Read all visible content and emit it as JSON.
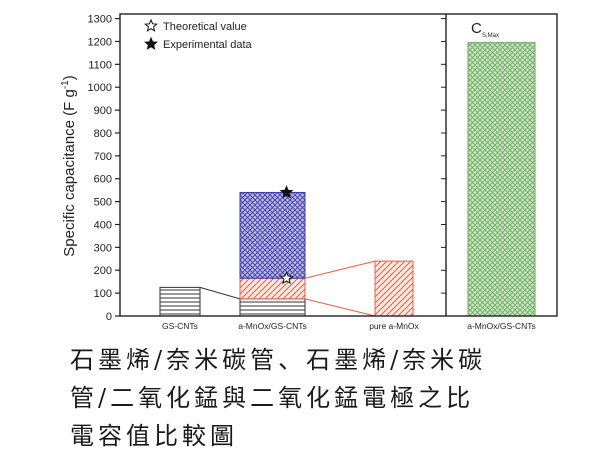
{
  "chart_data": {
    "type": "bar",
    "title": "",
    "xlabel": "",
    "ylabel": "Specific capacitance (F g",
    "ylabel_superscript": "-1",
    "ylabel_suffix": ")",
    "ylim": [
      0,
      1320
    ],
    "yticks": [
      0,
      100,
      200,
      300,
      400,
      500,
      600,
      700,
      800,
      900,
      1000,
      1100,
      1200,
      1300
    ],
    "grid": false,
    "legend_position": "top-left",
    "legend": [
      "Theoretical value",
      "Experimental data"
    ],
    "categories": [
      "GS-CNTs",
      "a-MnOx/GS-CNTs",
      "pure a-MnOx",
      "a-MnOx/GS-CNTs"
    ],
    "bars": [
      {
        "category_index": 0,
        "segments": [
          {
            "from": 0,
            "to": 125,
            "fill": "horizontal-lines",
            "color": "#333333"
          }
        ]
      },
      {
        "category_index": 1,
        "segments": [
          {
            "from": 0,
            "to": 75,
            "fill": "horizontal-lines",
            "color": "#333333"
          },
          {
            "from": 75,
            "to": 165,
            "fill": "diagonal-hatch",
            "color": "#e0604a"
          },
          {
            "from": 165,
            "to": 540,
            "fill": "cross-hatch",
            "color": "#3c3aa8"
          }
        ]
      },
      {
        "category_index": 2,
        "segments": [
          {
            "from": 0,
            "to": 240,
            "fill": "diagonal-hatch",
            "color": "#e0604a"
          }
        ]
      },
      {
        "category_index": 3,
        "segments": [
          {
            "from": 0,
            "to": 1195,
            "fill": "cross-hatch",
            "color": "#6aae5e"
          }
        ]
      }
    ],
    "markers": [
      {
        "category_index": 1,
        "value": 165,
        "style": "open-star",
        "legend_index": 0
      },
      {
        "category_index": 1,
        "value": 540,
        "style": "filled-star",
        "legend_index": 1
      }
    ],
    "connectors": [
      {
        "from_category": 0,
        "from_value": 125,
        "to_category": 1,
        "to_value": 75,
        "color": "#333333"
      },
      {
        "from_category": 1,
        "from_value": 165,
        "to_category": 2,
        "to_value": 240,
        "color": "#e0604a"
      },
      {
        "from_category": 1,
        "from_value": 75,
        "to_category": 2,
        "to_value": 0,
        "color": "#e0604a"
      }
    ],
    "annotation": {
      "text": "C",
      "subscript": "S,Max"
    }
  },
  "caption": {
    "lines": [
      "石墨烯/奈米碳管、石墨烯/奈米碳",
      "管/二氧化錳與二氧化錳電極之比",
      "電容值比較圖"
    ]
  }
}
